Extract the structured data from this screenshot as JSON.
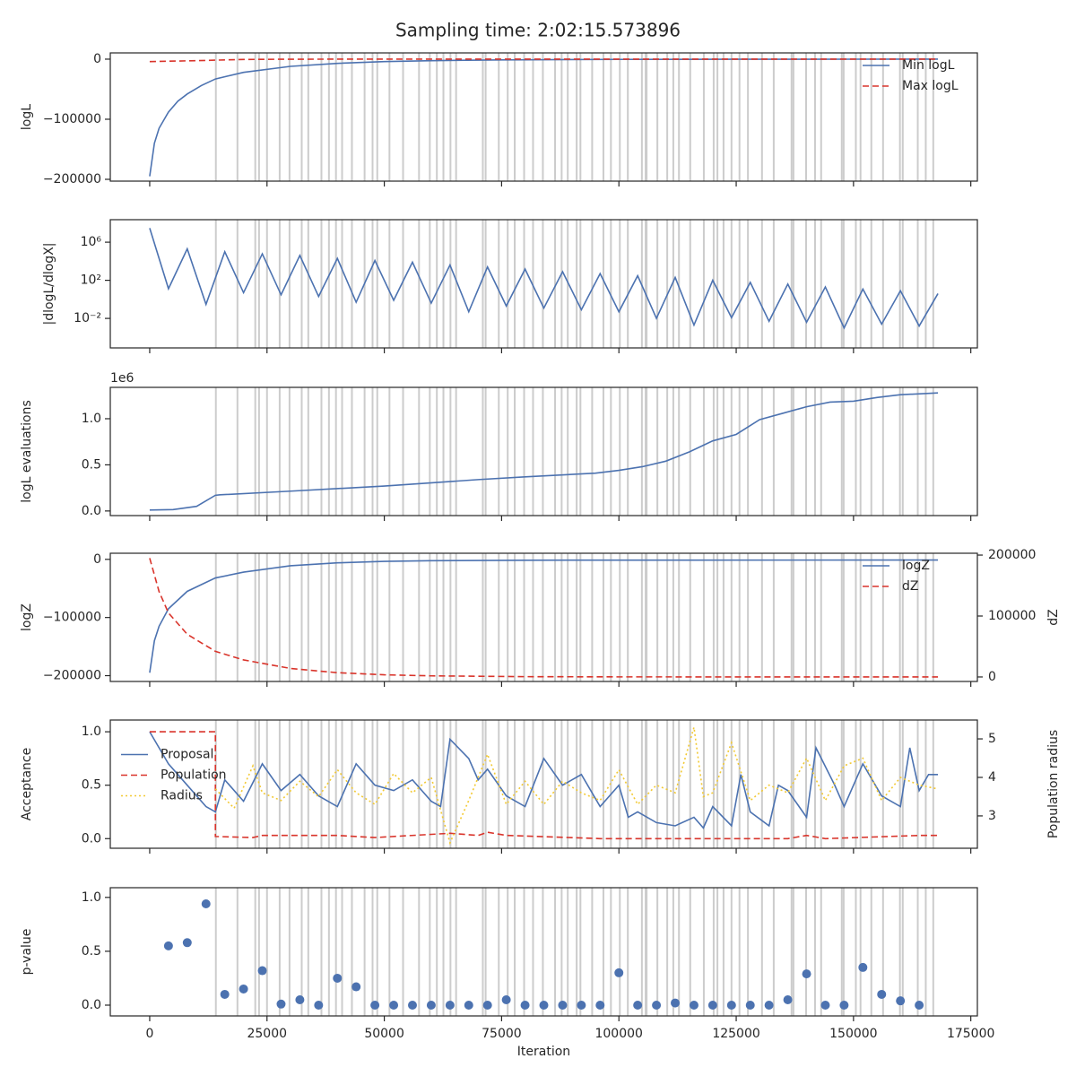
{
  "title": "Sampling time: 2:02:15.573896",
  "chart_data": [
    {
      "type": "line",
      "ylabel": "logL",
      "xlim": [
        -8400,
        176400
      ],
      "xticks": [
        0,
        25000,
        50000,
        75000,
        100000,
        125000,
        150000,
        175000
      ],
      "ylim": [
        -203000,
        10400
      ],
      "yticks": [
        {
          "value": -200000,
          "label": "−200000"
        },
        {
          "value": -100000,
          "label": "−100000"
        },
        0
      ],
      "legend": "upper right",
      "vlines": [
        14100,
        18700,
        22500,
        23300,
        25000,
        27700,
        29800,
        32400,
        33800,
        36600,
        38200,
        39700,
        41000,
        43100,
        45800,
        47500,
        48500,
        51100,
        54000,
        57400,
        59700,
        61200,
        62600,
        64100,
        65300,
        71000,
        71600,
        74400,
        76300,
        77800,
        79800,
        81700,
        83800,
        86400,
        87800,
        89100,
        91000,
        91800,
        94300,
        96700,
        98300,
        100200,
        101900,
        104900,
        105700,
        105900,
        108200,
        110300,
        111600,
        112800,
        115200,
        118100,
        120200,
        121000,
        122300,
        124000,
        125700,
        127500,
        130500,
        133000,
        136800,
        137200,
        139900,
        141800,
        143100,
        147500,
        147900,
        150500,
        151500,
        153800,
        156300,
        159900,
        160500,
        163700,
        165400,
        167000
      ],
      "series": [
        {
          "name": "Min logL",
          "color": "#4c72b0",
          "style": "solid",
          "x": [
            0,
            1000,
            2000,
            4000,
            6000,
            8000,
            11000,
            14000,
            20000,
            30000,
            40000,
            50000,
            60000,
            75000,
            100000,
            125000,
            150000,
            168000
          ],
          "values": [
            -195000,
            -140000,
            -115000,
            -88000,
            -70000,
            -58000,
            -44000,
            -33000,
            -22000,
            -12000,
            -7000,
            -4000,
            -2500,
            -1200,
            -400,
            -150,
            -50,
            -20
          ]
        },
        {
          "name": "Max logL",
          "color": "#d9342b",
          "style": "dashed",
          "x": [
            0,
            10000,
            20000,
            30000,
            40000,
            168000
          ],
          "values": [
            -4000,
            -2500,
            -500,
            -100,
            0,
            0
          ]
        }
      ]
    },
    {
      "type": "line",
      "ylabel": "|dlogL/dlogX|",
      "ylog": true,
      "xlim": [
        -8400,
        176400
      ],
      "xticks": [
        0,
        25000,
        50000,
        75000,
        100000,
        125000,
        150000,
        175000
      ],
      "ylim": [
        8e-06,
        230000000.0
      ],
      "yticks": [
        {
          "value": 0.01,
          "label": "10⁻²"
        },
        {
          "value": 100,
          "label": "10²"
        },
        {
          "value": 1000000,
          "label": "10⁶"
        }
      ],
      "series": [
        {
          "color": "#4c72b0",
          "style": "solid",
          "x": [
            0,
            4000,
            8000,
            12000,
            16000,
            20000,
            24000,
            28000,
            32000,
            36000,
            40000,
            44000,
            48000,
            52000,
            56000,
            60000,
            64000,
            68000,
            72000,
            76000,
            80000,
            84000,
            88000,
            92000,
            96000,
            100000,
            104000,
            108000,
            112000,
            116000,
            120000,
            124000,
            128000,
            132000,
            136000,
            140000,
            144000,
            148000,
            152000,
            156000,
            160000,
            164000,
            168000
          ],
          "values": [
            30000000.0,
            13,
            200000.0,
            0.3,
            100000.0,
            5,
            60000.0,
            3,
            40000.0,
            2,
            20000.0,
            0.5,
            12000.0,
            0.8,
            8000.0,
            0.4,
            4000.0,
            0.05,
            2500.0,
            0.2,
            1500.0,
            0.12,
            800,
            0.08,
            500,
            0.05,
            300,
            0.01,
            200,
            0.002,
            100,
            0.012,
            60,
            0.005,
            40,
            0.004,
            20,
            0.001,
            12,
            0.0025,
            8,
            0.0016,
            4
          ]
        }
      ]
    },
    {
      "type": "line",
      "ylabel": "logL evaluations",
      "offset_text": "1e6",
      "xlim": [
        -8400,
        176400
      ],
      "xticks": [
        0,
        25000,
        50000,
        75000,
        100000,
        125000,
        150000,
        175000
      ],
      "ylim": [
        -50000,
        1340000
      ],
      "yticks": [
        {
          "value": 0,
          "label": "0.0"
        },
        {
          "value": 500000,
          "label": "0.5"
        },
        {
          "value": 1000000,
          "label": "1.0"
        }
      ],
      "series": [
        {
          "color": "#4c72b0",
          "style": "solid",
          "x": [
            0,
            5000,
            10000,
            14000,
            15000,
            30000,
            50000,
            70000,
            80000,
            95000,
            100000,
            105000,
            110000,
            115000,
            120000,
            125000,
            130000,
            135000,
            140000,
            145000,
            150000,
            155000,
            160000,
            168000
          ],
          "values": [
            10000,
            15000,
            50000,
            170000,
            175000,
            215000,
            270000,
            340000,
            370000,
            410000,
            440000,
            480000,
            540000,
            640000,
            760000,
            830000,
            990000,
            1060000,
            1130000,
            1180000,
            1190000,
            1230000,
            1260000,
            1280000
          ]
        }
      ]
    },
    {
      "type": "line",
      "ylabel": "logZ",
      "y2label": "dZ",
      "xlim": [
        -8400,
        176400
      ],
      "xticks": [
        0,
        25000,
        50000,
        75000,
        100000,
        125000,
        150000,
        175000
      ],
      "ylim": [
        -210000,
        10500
      ],
      "yticks": [
        {
          "value": -200000,
          "label": "−200000"
        },
        {
          "value": -100000,
          "label": "−100000"
        },
        0
      ],
      "y2lim": [
        -7400,
        203000
      ],
      "y2ticks": [
        0,
        100000,
        200000
      ],
      "legend": "upper right",
      "series": [
        {
          "name": "logZ",
          "color": "#4c72b0",
          "style": "solid",
          "x": [
            0,
            1000,
            2000,
            4000,
            8000,
            14000,
            20000,
            30000,
            40000,
            50000,
            60000,
            80000,
            100000,
            168000
          ],
          "values": [
            -195000,
            -140000,
            -115000,
            -85000,
            -55000,
            -32000,
            -22000,
            -11000,
            -6000,
            -3500,
            -2300,
            -1500,
            -1300,
            -1200
          ]
        },
        {
          "name": "dZ",
          "color": "#d9342b",
          "style": "dashed",
          "axis": "y2",
          "x": [
            0,
            2000,
            4000,
            8000,
            14000,
            20000,
            30000,
            40000,
            50000,
            60000,
            80000,
            100000,
            168000
          ],
          "values": [
            195000,
            140000,
            105000,
            70000,
            42000,
            28000,
            14000,
            7000,
            3500,
            1800,
            500,
            150,
            0
          ]
        }
      ]
    },
    {
      "type": "line",
      "ylabel": "Acceptance",
      "y2label": "Population radius",
      "xlim": [
        -8400,
        176400
      ],
      "xticks": [
        0,
        25000,
        50000,
        75000,
        100000,
        125000,
        150000,
        175000
      ],
      "ylim": [
        -0.09,
        1.11
      ],
      "yticks": [
        {
          "value": 0,
          "label": "0.0"
        },
        {
          "value": 0.5,
          "label": "0.5"
        },
        {
          "value": 1,
          "label": "1.0"
        }
      ],
      "y2lim": [
        2.16,
        5.49
      ],
      "y2ticks": [
        3,
        4,
        5
      ],
      "legend": "center left",
      "series": [
        {
          "name": "Proposal",
          "color": "#4c72b0",
          "style": "solid",
          "x": [
            0,
            2000,
            4000,
            8000,
            12000,
            14000,
            16000,
            20000,
            24000,
            28000,
            32000,
            36000,
            40000,
            44000,
            48000,
            52000,
            56000,
            60000,
            62000,
            64000,
            68000,
            70000,
            72000,
            76000,
            80000,
            84000,
            88000,
            92000,
            96000,
            100000,
            102000,
            104000,
            108000,
            112000,
            116000,
            118000,
            120000,
            124000,
            126000,
            128000,
            132000,
            134000,
            136000,
            140000,
            142000,
            146000,
            148000,
            152000,
            156000,
            160000,
            162000,
            164000,
            166000,
            168000
          ],
          "values": [
            1.0,
            0.85,
            0.7,
            0.5,
            0.3,
            0.25,
            0.55,
            0.35,
            0.7,
            0.45,
            0.6,
            0.4,
            0.3,
            0.7,
            0.5,
            0.45,
            0.55,
            0.35,
            0.3,
            0.93,
            0.75,
            0.55,
            0.65,
            0.4,
            0.3,
            0.75,
            0.5,
            0.6,
            0.3,
            0.5,
            0.2,
            0.25,
            0.15,
            0.12,
            0.2,
            0.1,
            0.3,
            0.12,
            0.6,
            0.25,
            0.12,
            0.5,
            0.45,
            0.2,
            0.85,
            0.5,
            0.3,
            0.7,
            0.4,
            0.3,
            0.85,
            0.45,
            0.6,
            0.6
          ]
        },
        {
          "name": "Population",
          "color": "#d9342b",
          "style": "dashed",
          "x": [
            0,
            14000,
            14000,
            22000,
            24000,
            40000,
            48000,
            64000,
            70000,
            72000,
            76000,
            96000,
            136000,
            140000,
            144000,
            164000,
            168000
          ],
          "values": [
            1.0,
            1.0,
            0.02,
            0.01,
            0.03,
            0.03,
            0.01,
            0.05,
            0.03,
            0.06,
            0.03,
            0.0,
            0.0,
            0.03,
            0.0,
            0.03,
            0.03
          ]
        },
        {
          "name": "Radius",
          "color": "#f2c933",
          "style": "dotted",
          "axis": "y2",
          "x": [
            14000,
            18000,
            22000,
            24000,
            28000,
            32000,
            36000,
            40000,
            44000,
            48000,
            52000,
            56000,
            60000,
            64000,
            68000,
            72000,
            76000,
            80000,
            84000,
            88000,
            92000,
            96000,
            100000,
            104000,
            108000,
            112000,
            116000,
            118000,
            120000,
            124000,
            128000,
            132000,
            136000,
            140000,
            144000,
            148000,
            152000,
            156000,
            160000,
            164000,
            168000
          ],
          "values": [
            3.7,
            3.2,
            4.3,
            3.6,
            3.4,
            3.9,
            3.5,
            4.2,
            3.6,
            3.3,
            4.1,
            3.6,
            4.0,
            2.3,
            3.4,
            4.6,
            3.3,
            3.9,
            3.3,
            3.9,
            3.6,
            3.4,
            4.2,
            3.3,
            3.8,
            3.6,
            5.3,
            3.5,
            3.6,
            4.9,
            3.4,
            3.8,
            3.6,
            4.5,
            3.4,
            4.3,
            4.5,
            3.4,
            4.0,
            3.8,
            3.7
          ]
        }
      ]
    },
    {
      "type": "scatter",
      "ylabel": "p-value",
      "xlabel": "Iteration",
      "xlim": [
        -8400,
        176400
      ],
      "xticks": [
        0,
        25000,
        50000,
        75000,
        100000,
        125000,
        150000,
        175000
      ],
      "ylim": [
        -0.1,
        1.09
      ],
      "yticks": [
        {
          "value": 0,
          "label": "0.0"
        },
        {
          "value": 0.5,
          "label": "0.5"
        },
        {
          "value": 1,
          "label": "1.0"
        }
      ],
      "series": [
        {
          "color": "#4c72b0",
          "x": [
            4000,
            8000,
            12000,
            16000,
            20000,
            24000,
            28000,
            32000,
            36000,
            40000,
            44000,
            48000,
            52000,
            56000,
            60000,
            64000,
            68000,
            72000,
            76000,
            80000,
            84000,
            88000,
            92000,
            96000,
            100000,
            104000,
            108000,
            112000,
            116000,
            120000,
            124000,
            128000,
            132000,
            136000,
            140000,
            144000,
            148000,
            152000,
            156000,
            160000,
            164000
          ],
          "values": [
            0.55,
            0.58,
            0.94,
            0.1,
            0.15,
            0.32,
            0.01,
            0.05,
            0.0,
            0.25,
            0.17,
            0,
            0,
            0,
            0,
            0,
            0,
            0,
            0.05,
            0,
            0,
            0,
            0,
            0,
            0.3,
            0,
            0,
            0.02,
            0,
            0,
            0,
            0,
            0,
            0.05,
            0.29,
            0,
            0,
            0.35,
            0.1,
            0.04,
            0
          ]
        }
      ]
    }
  ]
}
